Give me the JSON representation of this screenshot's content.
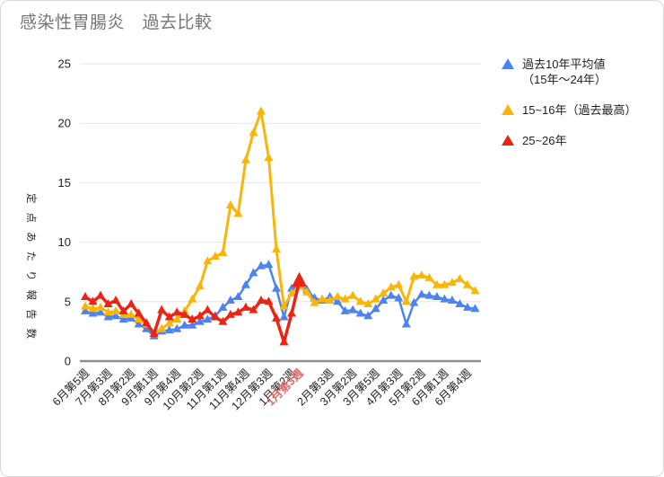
{
  "page": {
    "title": "感染性胃腸炎　過去比較",
    "title_color": "#757575"
  },
  "legend": {
    "items": [
      {
        "line1": "過去10年平均値",
        "line2": "（15年～24年）",
        "color": "#4C83EE"
      },
      {
        "line1": "15~16年（過去最高）",
        "line2": "",
        "color": "#FAB608"
      },
      {
        "line1": "25~26年",
        "line2": "",
        "color": "#EB2413"
      }
    ]
  },
  "chart_data": {
    "type": "line",
    "title": "感染性胃腸炎　過去比較",
    "ylabel": "定点あたり報告数",
    "xlabel": "",
    "ylim": [
      0,
      25
    ],
    "y_ticks": [
      0,
      5,
      10,
      15,
      20,
      25
    ],
    "grid": true,
    "legend_position": "right",
    "x_labels": [
      "6月第5週",
      "",
      "",
      "7月第3週",
      "",
      "",
      "8月第2週",
      "",
      "",
      "9月第1週",
      "",
      "",
      "9月第4週",
      "",
      "",
      "10月第2週",
      "",
      "",
      "11月第1週",
      "",
      "",
      "11月第4週",
      "",
      "",
      "12月第3週",
      "",
      "",
      "1月第2週",
      "1月第3週",
      "",
      "",
      "",
      "2月第3週",
      "",
      "",
      "3月第2週",
      "",
      "",
      "3月第5週",
      "",
      "",
      "4月第3週",
      "",
      "",
      "5月第2週",
      "",
      "",
      "6月第1週",
      "",
      "",
      "6月第4週",
      ""
    ],
    "highlight_label": {
      "index": 28,
      "text": "1月第3週",
      "color": "#E06666"
    },
    "axis_text_color": "#212121",
    "grid_color": "#e6e6e6",
    "baseline_color": "#8f8f8f",
    "series": [
      {
        "name": "過去10年平均値（15年～24年）",
        "color": "#4C83EE",
        "line_width": 2.5,
        "values": [
          4.2,
          4.0,
          4.1,
          3.7,
          3.8,
          3.5,
          3.6,
          3.1,
          2.7,
          2.1,
          2.5,
          2.6,
          2.7,
          3.0,
          3.0,
          3.3,
          3.5,
          3.8,
          4.5,
          5.1,
          5.4,
          6.4,
          7.4,
          8.0,
          8.1,
          6.1,
          3.7,
          6.1,
          6.3,
          6.0,
          5.3,
          5.1,
          5.4,
          5.0,
          4.2,
          4.3,
          4.0,
          3.8,
          4.4,
          5.1,
          5.5,
          5.3,
          3.1,
          4.9,
          5.6,
          5.5,
          5.4,
          5.2,
          5.1,
          4.8,
          4.5,
          4.4
        ]
      },
      {
        "name": "15~16年（過去最高）",
        "color": "#FAB608",
        "line_width": 3,
        "values": [
          4.6,
          4.4,
          4.5,
          4.1,
          4.2,
          3.9,
          3.9,
          3.5,
          3.1,
          2.3,
          2.7,
          3.2,
          3.5,
          4.2,
          5.2,
          6.3,
          8.4,
          8.8,
          9.1,
          13.1,
          12.4,
          16.9,
          19.2,
          21.0,
          17.1,
          9.4,
          4.6,
          5.7,
          6.3,
          5.8,
          4.9,
          5.2,
          5.1,
          5.4,
          5.2,
          5.5,
          5.0,
          4.8,
          5.2,
          5.7,
          6.2,
          6.4,
          5.0,
          7.1,
          7.2,
          7.0,
          6.4,
          6.4,
          6.6,
          6.9,
          6.4,
          5.9
        ]
      },
      {
        "name": "25~26年",
        "color": "#EB2413",
        "line_width": 3.5,
        "emphasize_last": true,
        "values": [
          5.4,
          5.0,
          5.5,
          4.8,
          5.1,
          4.2,
          4.8,
          4.0,
          3.2,
          2.3,
          4.3,
          3.7,
          4.1,
          3.9,
          3.5,
          3.8,
          4.3,
          3.7,
          3.3,
          3.9,
          4.1,
          4.5,
          4.3,
          5.1,
          5.0,
          3.6,
          1.6,
          4.0,
          6.7
        ]
      }
    ]
  }
}
